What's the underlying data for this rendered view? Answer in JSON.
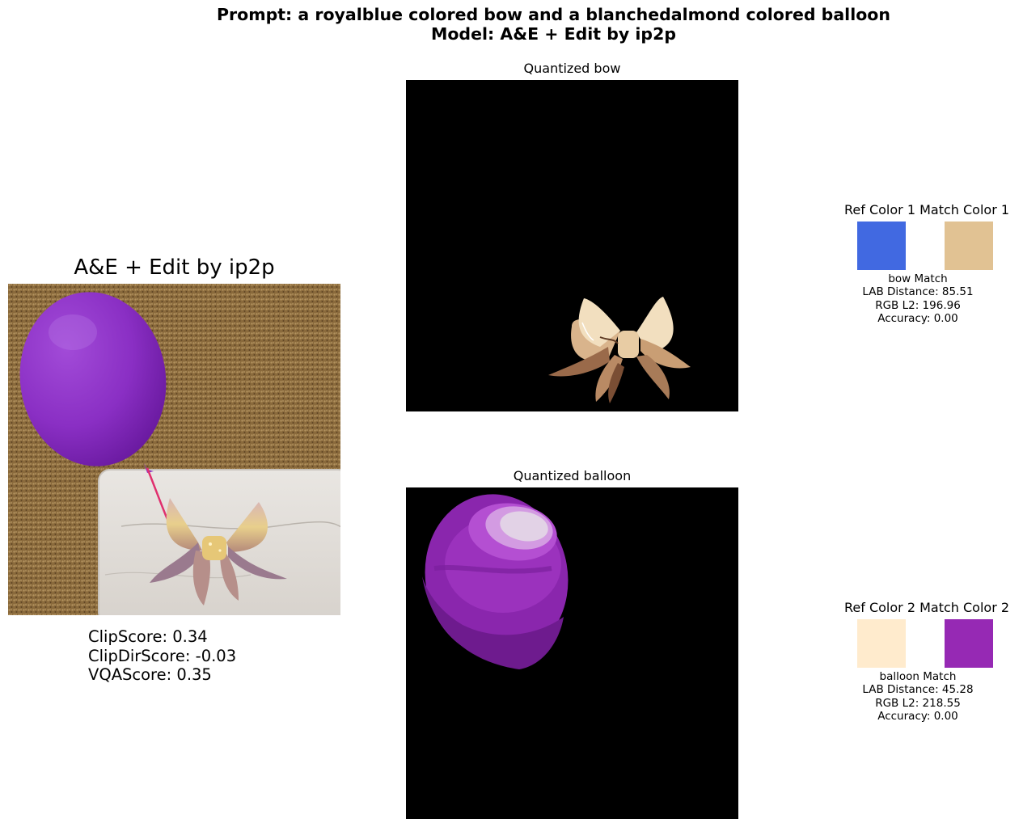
{
  "header": {
    "prompt_line": "Prompt: a royalblue colored bow and a blanchedalmond colored balloon",
    "model_line": "Model: A&E + Edit by ip2p"
  },
  "edited": {
    "title": "A&E + Edit by ip2p",
    "scores": {
      "clip": "ClipScore: 0.34",
      "clipdir": "ClipDirScore: -0.03",
      "vqa": "VQAScore: 0.35"
    }
  },
  "panels": {
    "bow": {
      "title": "Quantized bow"
    },
    "balloon": {
      "title": "Quantized balloon"
    }
  },
  "matches": [
    {
      "ref_label": "Ref Color 1",
      "match_label": "Match Color 1",
      "ref_color": "#4169e1",
      "match_color": "#e1c293",
      "name": "bow Match",
      "lab": "LAB Distance: 85.51",
      "rgb": "RGB L2: 196.96",
      "acc": "Accuracy: 0.00"
    },
    {
      "ref_label": "Ref Color 2",
      "match_label": "Match Color 2",
      "ref_color": "#ffebcd",
      "match_color": "#9629b4",
      "name": "balloon Match",
      "lab": "LAB Distance: 45.28",
      "rgb": "RGB L2: 218.55",
      "acc": "Accuracy: 0.00"
    }
  ]
}
